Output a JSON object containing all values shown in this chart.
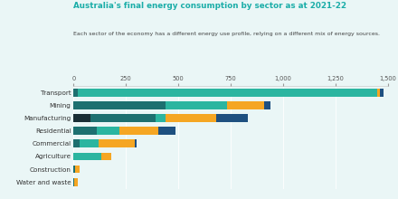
{
  "title": "Australia's final energy consumption by sector as at 2021-22",
  "subtitle": "Each sector of the economy has a different energy use profile, relying on a different mix of energy sources.",
  "categories": [
    "Water and waste",
    "Construction",
    "Agriculture",
    "Commercial",
    "Residential",
    "Manufacturing",
    "Mining",
    "Transport"
  ],
  "segments": {
    "dark_navy": [
      0,
      0,
      0,
      0,
      0,
      80,
      0,
      0
    ],
    "dark_teal": [
      3,
      5,
      0,
      30,
      110,
      310,
      440,
      20
    ],
    "mid_teal": [
      0,
      0,
      130,
      90,
      110,
      50,
      290,
      1430
    ],
    "orange": [
      18,
      22,
      50,
      170,
      185,
      240,
      180,
      10
    ],
    "dark_blue": [
      0,
      0,
      0,
      10,
      80,
      150,
      30,
      20
    ]
  },
  "colors": {
    "dark_navy": "#1a2e35",
    "dark_teal": "#1d7070",
    "mid_teal": "#2bb5a0",
    "orange": "#f5a623",
    "dark_blue": "#1e5080"
  },
  "xlim": [
    0,
    1500
  ],
  "xticks": [
    0,
    250,
    500,
    750,
    1000,
    1250,
    1500
  ],
  "xticklabels": [
    "0",
    "250",
    "500",
    "750",
    "1,000",
    "1,250",
    "1,500"
  ],
  "background_color": "#eaf6f6",
  "title_color": "#1aada8",
  "subtitle_color": "#444444",
  "label_color": "#333333"
}
